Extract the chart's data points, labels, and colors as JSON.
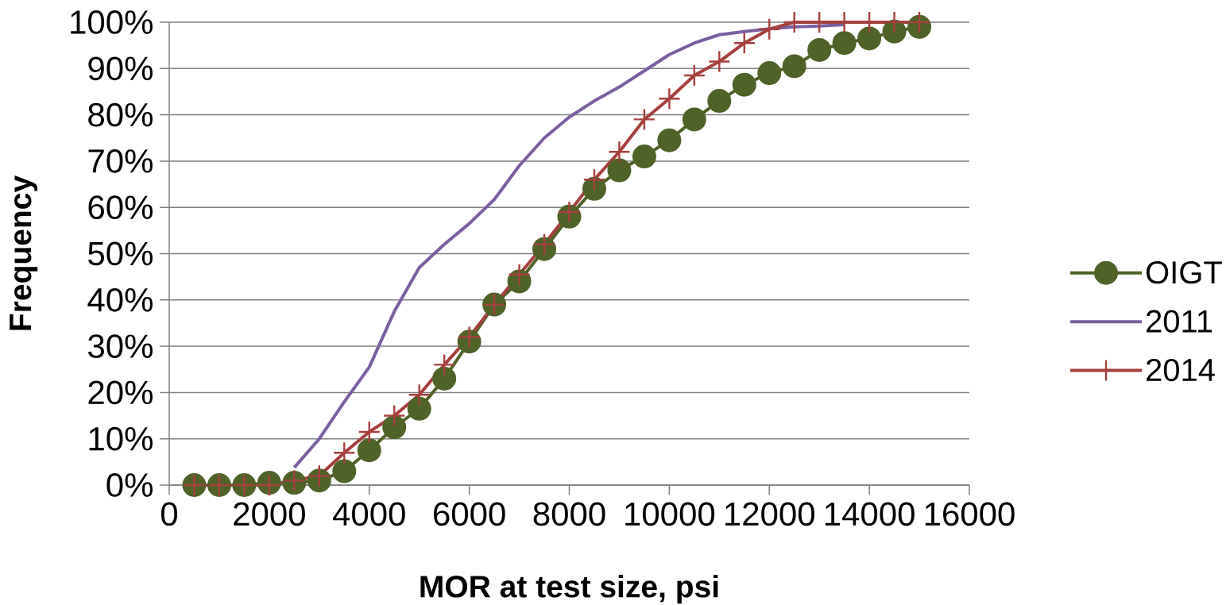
{
  "chart_data": {
    "type": "line",
    "xlabel": "MOR at test size, psi",
    "ylabel": "Frequency",
    "xlim": [
      0,
      16000
    ],
    "xticks": [
      0,
      2000,
      4000,
      6000,
      8000,
      10000,
      12000,
      14000,
      16000
    ],
    "ylim": [
      0,
      100
    ],
    "yticks": [
      {
        "value": 0,
        "label": "0%"
      },
      {
        "value": 10,
        "label": "10%"
      },
      {
        "value": 20,
        "label": "20%"
      },
      {
        "value": 30,
        "label": "30%"
      },
      {
        "value": 40,
        "label": "40%"
      },
      {
        "value": 50,
        "label": "50%"
      },
      {
        "value": 60,
        "label": "60%"
      },
      {
        "value": 70,
        "label": "70%"
      },
      {
        "value": 80,
        "label": "80%"
      },
      {
        "value": 90,
        "label": "90%"
      },
      {
        "value": 100,
        "label": "100%"
      }
    ],
    "grid": "y",
    "legend": "right",
    "series": [
      {
        "name": "OIGT",
        "color": "#4f6228",
        "marker": "circle",
        "x": [
          500,
          1000,
          1500,
          2000,
          2500,
          3000,
          3500,
          4000,
          4500,
          5000,
          5500,
          6000,
          6500,
          7000,
          7500,
          8000,
          8500,
          9000,
          9500,
          10000,
          10500,
          11000,
          11500,
          12000,
          12500,
          13000,
          13500,
          14000,
          14500,
          15000
        ],
        "values": [
          0,
          0,
          0,
          0.5,
          0.5,
          1,
          3,
          7.5,
          12.5,
          16.5,
          23,
          31,
          39,
          44,
          51,
          58,
          64,
          68,
          71,
          74.5,
          79,
          83,
          86.5,
          89,
          90.5,
          94,
          95.5,
          96.5,
          98,
          99
        ]
      },
      {
        "name": "2011",
        "color": "#7a5fa0",
        "marker": "none",
        "x": [
          2500,
          3000,
          3500,
          4000,
          4500,
          5000,
          5500,
          6000,
          6500,
          7000,
          7500,
          8000,
          8500,
          9000,
          9500,
          10000,
          10500,
          11000,
          11500,
          12000,
          12500,
          13000,
          13500
        ],
        "values": [
          3.8,
          10,
          18,
          25.5,
          37.5,
          47,
          52,
          56.5,
          61.7,
          69,
          75,
          79.5,
          83,
          86,
          89.5,
          93,
          95.5,
          97.3,
          98,
          98.6,
          99,
          99.2,
          99.5
        ]
      },
      {
        "name": "2014",
        "color": "#a5403e",
        "marker": "cross",
        "x": [
          500,
          1000,
          1500,
          2000,
          2500,
          3000,
          3500,
          4000,
          4500,
          5000,
          5500,
          6000,
          6500,
          7000,
          7500,
          8000,
          8500,
          9000,
          9500,
          10000,
          10500,
          11000,
          11500,
          12000,
          12500,
          13000,
          13500,
          14000,
          14500,
          15000
        ],
        "values": [
          0,
          0,
          0,
          0,
          1,
          2,
          7,
          11.5,
          15,
          19.5,
          26,
          32,
          39,
          45.5,
          52,
          59,
          66,
          72,
          79,
          83.5,
          88.5,
          91.5,
          95.5,
          98.5,
          100,
          100,
          100,
          100,
          100,
          100
        ]
      }
    ]
  }
}
